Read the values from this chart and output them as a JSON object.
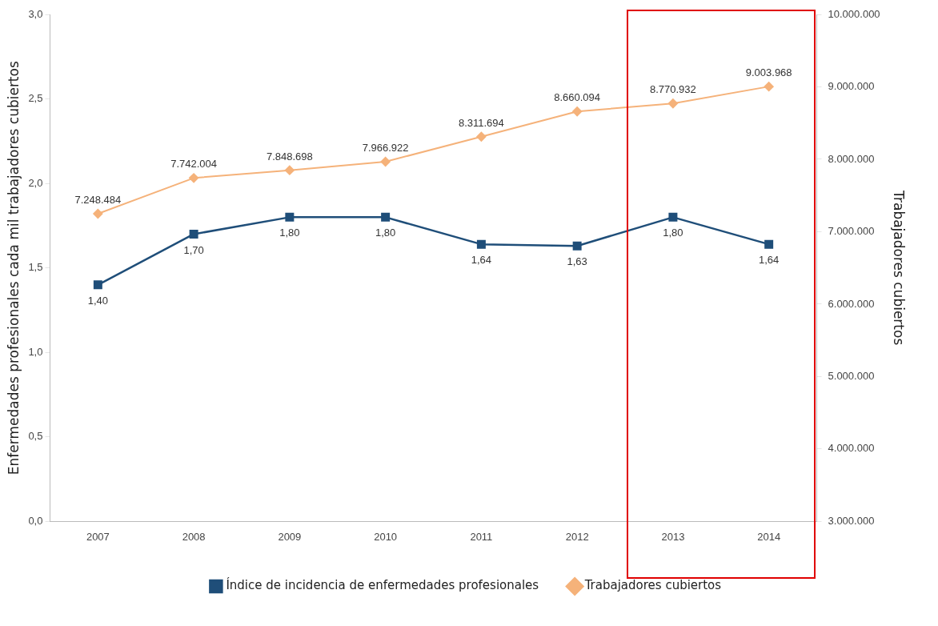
{
  "chart_data": {
    "type": "line",
    "ylabel": "Enfermedades profesionales cada mil trabajadores cubiertos",
    "y2label": "Trabajadores cubiertos",
    "categories": [
      "2007",
      "2008",
      "2009",
      "2010",
      "2011",
      "2012",
      "2013",
      "2014"
    ],
    "series": [
      {
        "name": "Índice de incidencia de enfermedades profesionales",
        "color": "#1f4e79",
        "marker": "square",
        "values": [
          1.4,
          1.7,
          1.8,
          1.8,
          1.64,
          1.63,
          1.8,
          1.64
        ],
        "value_labels": [
          "1,40",
          "1,70",
          "1,80",
          "1,80",
          "1,64",
          "1,63",
          "1,80",
          "1,64"
        ]
      },
      {
        "name": "Trabajadores cubiertos",
        "color": "#f5b27a",
        "marker": "diamond",
        "axis": "y2",
        "values": [
          7248484,
          7742004,
          7848698,
          7966922,
          8311694,
          8660094,
          8770932,
          9003968
        ],
        "value_labels": [
          "7.248.484",
          "7.742.004",
          "7.848.698",
          "7.966.922",
          "8.311.694",
          "8.660.094",
          "8.770.932",
          "9.003.968"
        ]
      }
    ],
    "ylim": [
      0,
      3
    ],
    "yticks": [
      {
        "value": 0,
        "label": "0,0"
      },
      {
        "value": 0.5,
        "label": "0,5"
      },
      {
        "value": 1,
        "label": "1,0"
      },
      {
        "value": 1.5,
        "label": "1,5"
      },
      {
        "value": 2,
        "label": "2,0"
      },
      {
        "value": 2.5,
        "label": "2,5"
      },
      {
        "value": 3,
        "label": "3,0"
      }
    ],
    "y2lim": [
      3000000,
      10000000
    ],
    "y2ticks": [
      {
        "value": 3000000,
        "label": "3.000.000"
      },
      {
        "value": 4000000,
        "label": "4.000.000"
      },
      {
        "value": 5000000,
        "label": "5.000.000"
      },
      {
        "value": 6000000,
        "label": "6.000.000"
      },
      {
        "value": 7000000,
        "label": "7.000.000"
      },
      {
        "value": 8000000,
        "label": "8.000.000"
      },
      {
        "value": 9000000,
        "label": "9.000.000"
      },
      {
        "value": 10000000,
        "label": "10.000.000"
      }
    ],
    "grid": false,
    "legend": "bottom"
  }
}
